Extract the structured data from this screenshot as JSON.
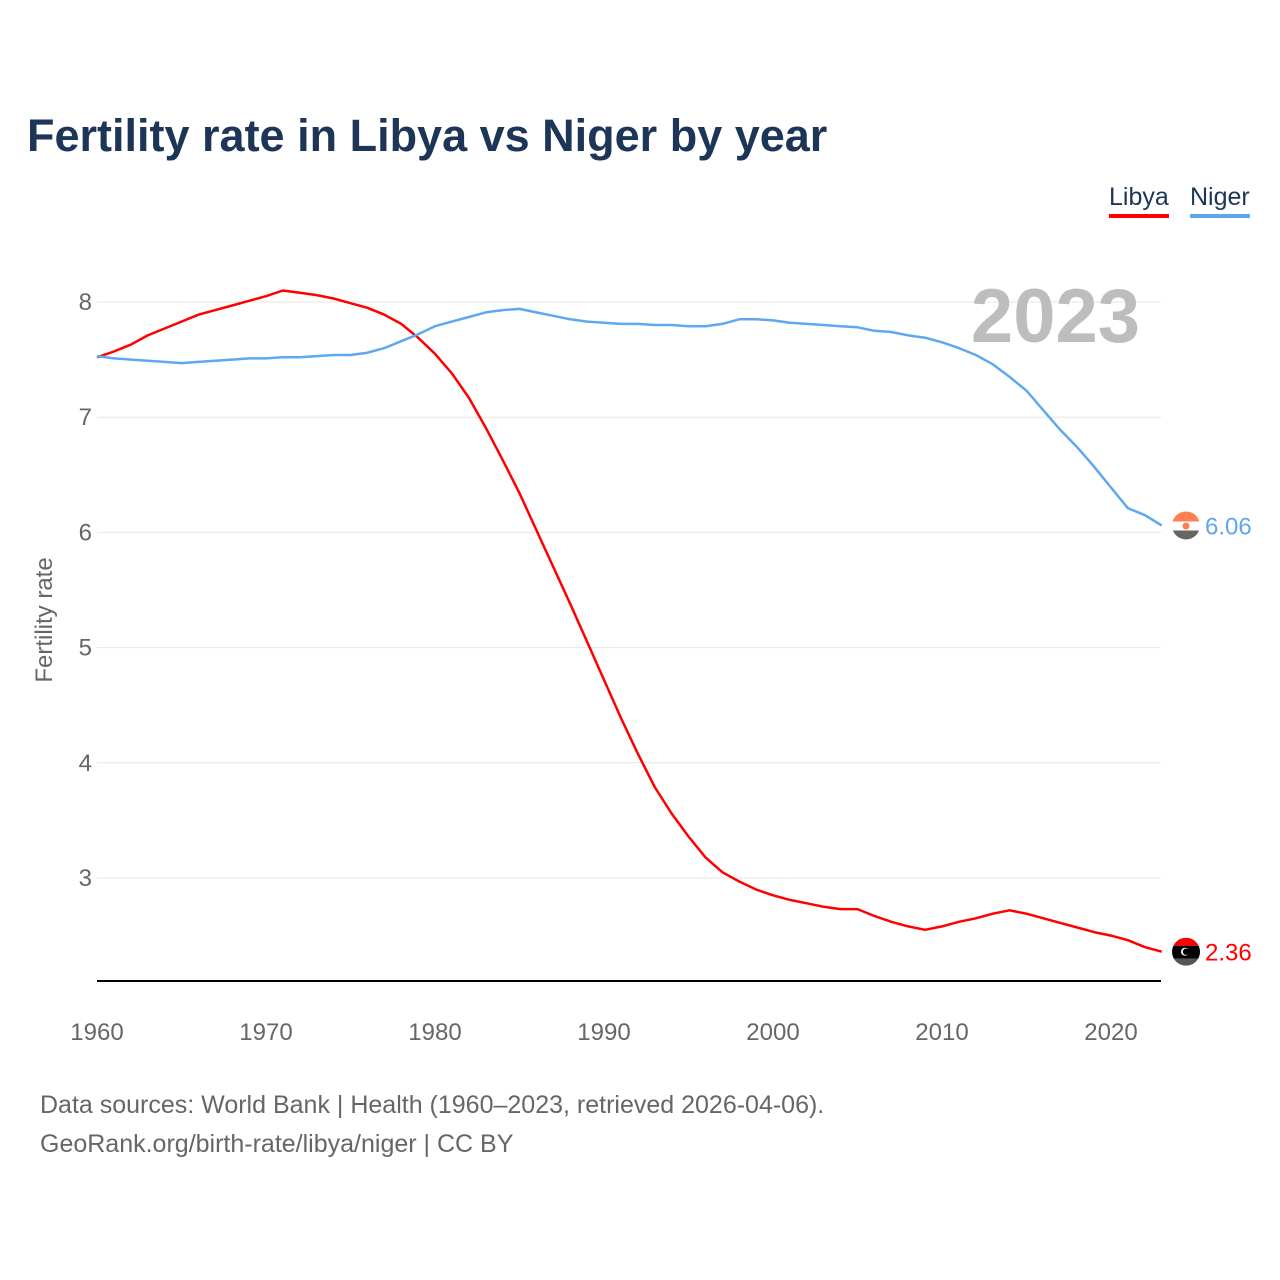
{
  "chart_data": {
    "type": "line",
    "title": "Fertility rate in Libya vs Niger by year",
    "xlabel": "",
    "ylabel": "Fertility rate",
    "xlim": [
      1960,
      2023
    ],
    "ylim": [
      2.1,
      8.4
    ],
    "xticks": [
      "1960",
      "1970",
      "1980",
      "1990",
      "2000",
      "2010",
      "2020"
    ],
    "yticks": [
      "3",
      "4",
      "5",
      "6",
      "7",
      "8"
    ],
    "grid": true,
    "legend_position": "top-right",
    "year_label": "2023",
    "x_start": 1960,
    "series": [
      {
        "name": "Libya",
        "color": "#ff0000",
        "end_label": "2.36",
        "values": [
          7.52,
          7.57,
          7.63,
          7.71,
          7.77,
          7.83,
          7.89,
          7.93,
          7.97,
          8.01,
          8.05,
          8.1,
          8.08,
          8.06,
          8.03,
          7.99,
          7.95,
          7.89,
          7.81,
          7.69,
          7.55,
          7.38,
          7.17,
          6.91,
          6.63,
          6.34,
          6.02,
          5.7,
          5.38,
          5.05,
          4.72,
          4.39,
          4.08,
          3.79,
          3.56,
          3.36,
          3.18,
          3.05,
          2.97,
          2.9,
          2.85,
          2.81,
          2.78,
          2.75,
          2.73,
          2.73,
          2.67,
          2.62,
          2.58,
          2.55,
          2.58,
          2.62,
          2.65,
          2.69,
          2.72,
          2.69,
          2.65,
          2.61,
          2.57,
          2.53,
          2.5,
          2.46,
          2.4,
          2.36
        ]
      },
      {
        "name": "Niger",
        "color": "#5fa8ee",
        "end_label": "6.06",
        "values": [
          7.53,
          7.51,
          7.5,
          7.49,
          7.48,
          7.47,
          7.48,
          7.49,
          7.5,
          7.51,
          7.51,
          7.52,
          7.52,
          7.53,
          7.54,
          7.54,
          7.56,
          7.6,
          7.66,
          7.72,
          7.79,
          7.83,
          7.87,
          7.91,
          7.93,
          7.94,
          7.91,
          7.88,
          7.85,
          7.83,
          7.82,
          7.81,
          7.81,
          7.8,
          7.8,
          7.79,
          7.79,
          7.81,
          7.85,
          7.85,
          7.84,
          7.82,
          7.81,
          7.8,
          7.79,
          7.78,
          7.75,
          7.74,
          7.71,
          7.69,
          7.65,
          7.6,
          7.54,
          7.46,
          7.35,
          7.23,
          7.06,
          6.89,
          6.74,
          6.57,
          6.39,
          6.21,
          6.15,
          6.06
        ]
      }
    ]
  },
  "source": {
    "line1": "Data sources: World Bank | Health (1960–2023, retrieved 2026-04-06).",
    "line2": "GeoRank.org/birth-rate/libya/niger | CC BY"
  }
}
